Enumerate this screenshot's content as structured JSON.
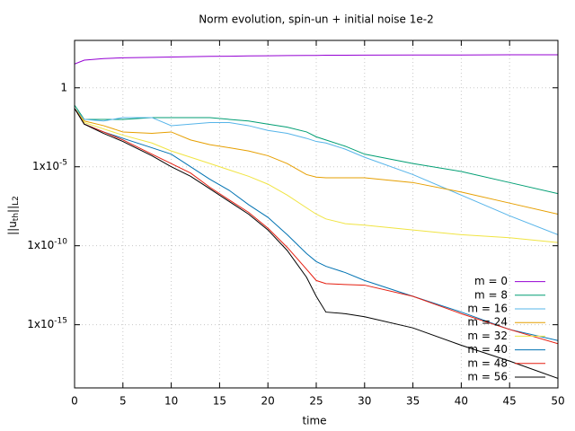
{
  "chart_data": {
    "type": "line",
    "title": "Norm evolution, spin-un + initial noise 1e-2",
    "xlabel": "time",
    "ylabel": [
      "||u",
      "th",
      "||",
      "L2"
    ],
    "x": [
      0,
      1,
      3,
      5,
      8,
      10,
      12,
      14,
      16,
      18,
      20,
      22,
      24,
      25,
      26,
      28,
      30,
      35,
      40,
      45,
      50
    ],
    "series": [
      {
        "name": "m = 0",
        "color": "#9400d3",
        "values": [
          32,
          56,
          71,
          79,
          85,
          89,
          93,
          98,
          100,
          105,
          107,
          110,
          112,
          112,
          115,
          115,
          117,
          120,
          120,
          123,
          123
        ]
      },
      {
        "name": "m = 8",
        "color": "#009e73",
        "values": [
          0.079,
          0.01,
          0.01,
          0.01,
          0.013,
          0.013,
          0.013,
          0.013,
          0.01,
          0.0079,
          0.005,
          0.0032,
          0.0016,
          0.00079,
          0.0005,
          0.0002,
          6.3e-05,
          1.6e-05,
          5e-06,
          1e-06,
          2e-07
        ]
      },
      {
        "name": "m = 16",
        "color": "#56b4e9",
        "values": [
          0.05,
          0.01,
          0.0079,
          0.013,
          0.013,
          0.004,
          0.005,
          0.0063,
          0.0063,
          0.004,
          0.002,
          0.0013,
          0.00063,
          0.0004,
          0.00032,
          0.00013,
          4e-05,
          3.2e-06,
          1.6e-07,
          7.9e-09,
          5e-10
        ]
      },
      {
        "name": "m = 24",
        "color": "#e69f00",
        "values": [
          0.05,
          0.0079,
          0.004,
          0.0016,
          0.0013,
          0.0016,
          0.0005,
          0.00025,
          0.00016,
          0.0001,
          5e-05,
          1.6e-05,
          3.2e-06,
          2.2e-06,
          2e-06,
          2e-06,
          2e-06,
          1e-06,
          2.5e-07,
          5e-08,
          1e-08
        ]
      },
      {
        "name": "m = 32",
        "color": "#f0e442",
        "values": [
          0.05,
          0.0063,
          0.0025,
          0.001,
          0.00032,
          0.0001,
          4e-05,
          1.6e-05,
          6.3e-06,
          2.5e-06,
          7.9e-07,
          1.6e-07,
          2.5e-08,
          1e-08,
          5e-09,
          2.5e-09,
          2e-09,
          1e-09,
          5e-10,
          3.2e-10,
          1.6e-10
        ]
      },
      {
        "name": "m = 40",
        "color": "#0072b2",
        "values": [
          0.05,
          0.005,
          0.0016,
          0.00063,
          0.00016,
          6.3e-05,
          1e-05,
          1.6e-06,
          3.2e-07,
          4e-08,
          6.3e-09,
          5e-10,
          3.2e-11,
          1e-11,
          5e-12,
          2e-12,
          6.3e-13,
          6.3e-14,
          6.3e-15,
          5e-16,
          1e-16
        ]
      },
      {
        "name": "m = 48",
        "color": "#e51e10",
        "values": [
          0.05,
          0.005,
          0.0016,
          0.0005,
          6.3e-05,
          1.6e-05,
          4e-06,
          5e-07,
          7.9e-08,
          1.3e-08,
          1.3e-09,
          7.9e-11,
          3.2e-12,
          6.3e-13,
          4e-13,
          3.5e-13,
          3.2e-13,
          6.3e-14,
          5e-15,
          5e-16,
          6.3e-17
        ]
      },
      {
        "name": "m = 56",
        "color": "#000000",
        "values": [
          0.05,
          0.005,
          0.0013,
          0.0004,
          5e-05,
          1e-05,
          2.5e-06,
          4e-07,
          6.3e-08,
          1e-08,
          1e-09,
          5e-11,
          1e-12,
          6.3e-14,
          6.3e-15,
          5e-15,
          3.2e-15,
          6.3e-16,
          5e-17,
          5e-18,
          4e-19
        ]
      }
    ],
    "xlim": [
      0,
      50
    ],
    "xticks": [
      0,
      5,
      10,
      15,
      20,
      25,
      30,
      35,
      40,
      45,
      50
    ],
    "ylim": [
      1e-19,
      1000
    ],
    "log_y": true,
    "yticks": [
      1,
      {
        "value": 1e-05,
        "label": "1x10-5"
      },
      {
        "value": 1e-10,
        "label": "1x10-10"
      },
      {
        "value": 1e-15,
        "label": "1x10-15"
      }
    ],
    "grid": true,
    "legend": "bottom right"
  }
}
